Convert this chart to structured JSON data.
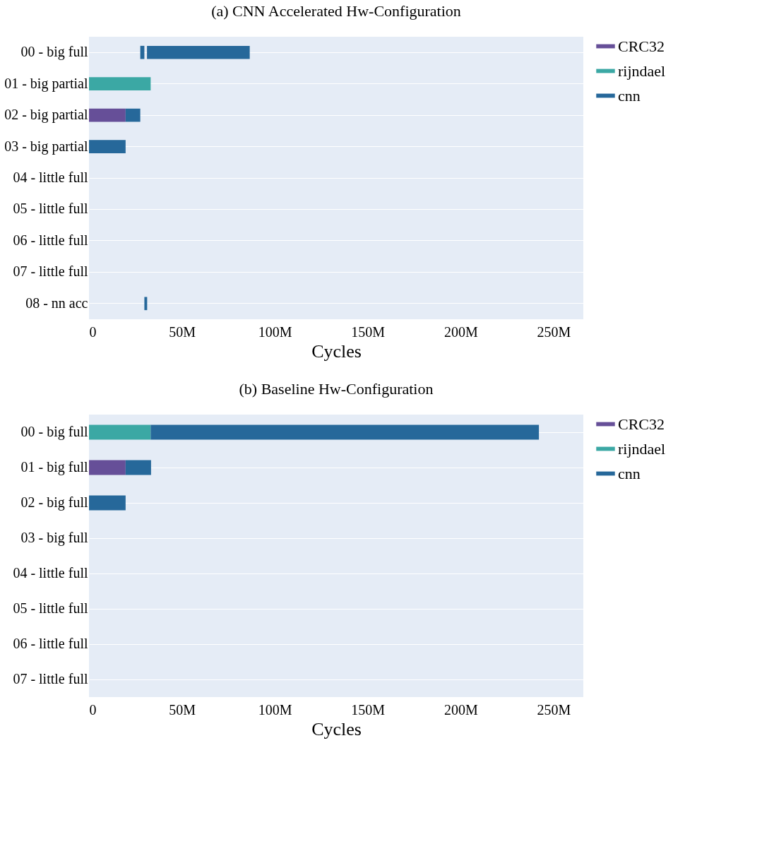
{
  "chart_data": [
    {
      "type": "bar",
      "title": "(a) CNN Accelerated Hw-Configuration",
      "xlabel": "Cycles",
      "orientation": "horizontal",
      "categories": [
        "00 - big full",
        "01 - big partial",
        "02 - big partial",
        "03 - big partial",
        "04 - little full",
        "05 - little full",
        "06 - little full",
        "07 - little full",
        "08 - nn acc"
      ],
      "series": [
        {
          "name": "CRC32",
          "color": "#664f98",
          "values": [
            null,
            null,
            19700000,
            null,
            null,
            null,
            null,
            null,
            null
          ],
          "base": [
            null,
            null,
            0,
            null,
            null,
            null,
            null,
            null,
            null
          ]
        },
        {
          "name": "rijndael",
          "color": "#3ba8a4",
          "values": [
            null,
            33200000,
            null,
            null,
            null,
            null,
            null,
            null,
            null
          ],
          "base": [
            null,
            0,
            null,
            null,
            null,
            null,
            null,
            null,
            null
          ]
        },
        {
          "name": "cnn",
          "color": "#26689a",
          "values": [
            55300000,
            null,
            7900000,
            19700000,
            null,
            null,
            null,
            null,
            1500000
          ],
          "base": [
            31200000,
            null,
            19700000,
            0,
            null,
            null,
            null,
            null,
            29800000
          ]
        },
        {
          "color": "#26689a",
          "values": [
            2200000,
            null,
            null,
            null,
            null,
            null,
            null,
            null,
            null
          ],
          "base": [
            27600000,
            null,
            null,
            null,
            null,
            null,
            null,
            null,
            null
          ]
        }
      ],
      "xlim": [
        0,
        266000000
      ],
      "xticks": [
        0,
        {
          "value": 50000000,
          "label": "50M"
        },
        {
          "value": 100000000,
          "label": "100M"
        },
        {
          "value": 150000000,
          "label": "150M"
        },
        {
          "value": 200000000,
          "label": "200M"
        },
        {
          "value": 250000000,
          "label": "250M"
        }
      ],
      "grid": "y",
      "legend": "top right"
    },
    {
      "type": "bar",
      "title": "(b) Baseline Hw-Configuration",
      "xlabel": "Cycles",
      "orientation": "horizontal",
      "categories": [
        "00 - big full",
        "01 - big full",
        "02 - big full",
        "03 - big full",
        "04 - little full",
        "05 - little full",
        "06 - little full",
        "07 - little full"
      ],
      "series": [
        {
          "name": "CRC32",
          "color": "#664f98",
          "values": [
            null,
            19700000,
            null,
            null,
            null,
            null,
            null,
            null
          ],
          "base": [
            null,
            0,
            null,
            null,
            null,
            null,
            null,
            null
          ]
        },
        {
          "name": "rijndael",
          "color": "#3ba8a4",
          "values": [
            33200000,
            null,
            null,
            null,
            null,
            null,
            null,
            null
          ],
          "base": [
            0,
            null,
            null,
            null,
            null,
            null,
            null,
            null
          ]
        },
        {
          "name": "cnn",
          "color": "#26689a",
          "values": [
            208900000,
            13700000,
            19700000,
            null,
            null,
            null,
            null,
            null
          ],
          "base": [
            33200000,
            19700000,
            0,
            null,
            null,
            null,
            null,
            null
          ]
        }
      ],
      "xlim": [
        0,
        266000000
      ],
      "xticks": [
        0,
        {
          "value": 50000000,
          "label": "50M"
        },
        {
          "value": 100000000,
          "label": "100M"
        },
        {
          "value": 150000000,
          "label": "150M"
        },
        {
          "value": 200000000,
          "label": "200M"
        },
        {
          "value": 250000000,
          "label": "250M"
        }
      ],
      "grid": "y",
      "legend": "top right"
    }
  ]
}
